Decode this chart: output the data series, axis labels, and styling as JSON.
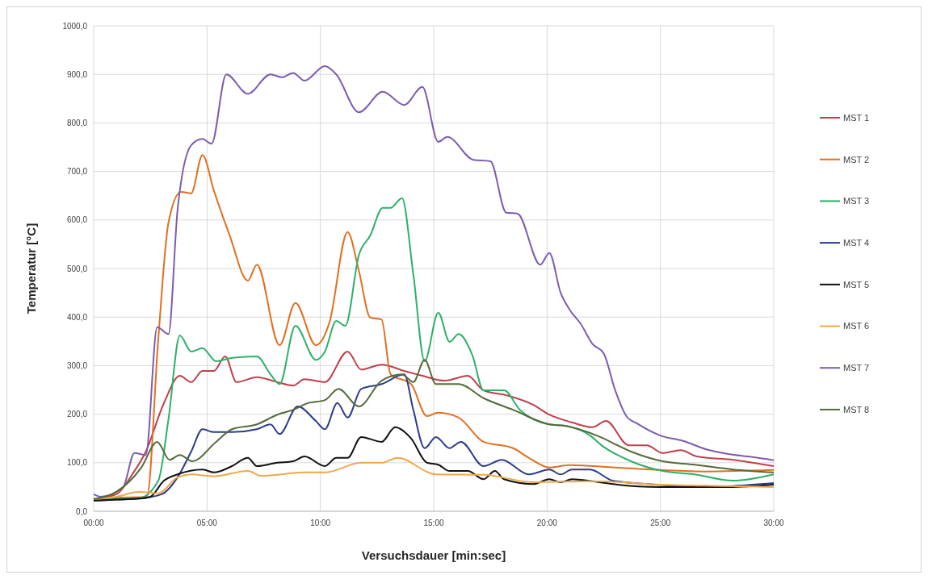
{
  "chart_data": {
    "type": "line",
    "xlabel": "Versuchsdauer [min:sec]",
    "ylabel": "Temperatur [°C]",
    "xlim": [
      0,
      30
    ],
    "xticks": [
      {
        "value": 0,
        "label": "00:00"
      },
      {
        "value": 5,
        "label": "05:00"
      },
      {
        "value": 10,
        "label": "10:00"
      },
      {
        "value": 15,
        "label": "15:00"
      },
      {
        "value": 20,
        "label": "20:00"
      },
      {
        "value": 25,
        "label": "25:00"
      },
      {
        "value": 30,
        "label": "30:00"
      }
    ],
    "ylim": [
      0,
      1000
    ],
    "yticks": [
      {
        "value": 0,
        "label": "0,0"
      },
      {
        "value": 100,
        "label": "100,0"
      },
      {
        "value": 200,
        "label": "200,0"
      },
      {
        "value": 300,
        "label": "300,0"
      },
      {
        "value": 400,
        "label": "400,0"
      },
      {
        "value": 500,
        "label": "500,0"
      },
      {
        "value": 600,
        "label": "600,0"
      },
      {
        "value": 700,
        "label": "700,0"
      },
      {
        "value": 800,
        "label": "800,0"
      },
      {
        "value": 900,
        "label": "900,0"
      },
      {
        "value": 1000,
        "label": "1000,0"
      }
    ],
    "grid": true,
    "legend": "right",
    "marker": "none",
    "line_style": "solid",
    "series": [
      {
        "name": "MST 1",
        "color": "#c0404a",
        "x": [
          0,
          1,
          1.7,
          2.3,
          3.1,
          3.8,
          4.3,
          4.8,
          5.3,
          5.8,
          6.3,
          7.2,
          8.1,
          8.8,
          9.3,
          10.2,
          11.2,
          11.8,
          12.7,
          13.7,
          14.5,
          15.5,
          16.5,
          17.2,
          18.2,
          19.4,
          20.1,
          21.1,
          22,
          22.6,
          23.6,
          24.4,
          25.1,
          25.9,
          26.6,
          28.2,
          30
        ],
        "values": [
          25,
          35,
          76,
          123,
          223,
          279,
          266,
          289,
          289,
          319,
          266,
          276,
          266,
          259,
          272,
          266,
          329,
          292,
          302,
          289,
          279,
          269,
          279,
          249,
          239,
          219,
          199,
          183,
          173,
          186,
          136,
          136,
          120,
          126,
          113,
          106,
          93
        ]
      },
      {
        "name": "MST 2",
        "color": "#e07020",
        "x": [
          0,
          1,
          2.35,
          2.85,
          3.3,
          3.85,
          4.3,
          4.8,
          5.3,
          6,
          6.8,
          7.2,
          8.2,
          8.9,
          9.8,
          10.4,
          11.2,
          11.7,
          12.2,
          12.7,
          13.1,
          14,
          14.7,
          15.2,
          16.1,
          17.2,
          18.5,
          19.2,
          20.1,
          21,
          23,
          25,
          27,
          30
        ],
        "values": [
          25,
          28,
          30,
          355,
          595,
          658,
          655,
          734,
          661,
          568,
          475,
          508,
          342,
          429,
          342,
          389,
          575,
          495,
          399,
          395,
          282,
          262,
          196,
          203,
          193,
          143,
          130,
          110,
          90,
          95,
          90,
          85,
          82,
          85
        ]
      },
      {
        "name": "MST 3",
        "color": "#2eb06a",
        "x": [
          0,
          1,
          2,
          2.85,
          3.3,
          3.8,
          4.3,
          4.8,
          5.4,
          6.1,
          7.2,
          7.8,
          8.2,
          8.9,
          9.8,
          10.2,
          10.7,
          11.1,
          11.7,
          12.2,
          12.75,
          13.1,
          13.6,
          14.1,
          14.6,
          15.2,
          15.7,
          16.1,
          16.7,
          17.2,
          18.1,
          18.8,
          20.1,
          20.8,
          21.9,
          22.4,
          23.7,
          25.1,
          26.5,
          28.2,
          30
        ],
        "values": [
          25,
          26,
          27,
          63,
          190,
          362,
          329,
          336,
          309,
          316,
          319,
          282,
          262,
          382,
          312,
          329,
          392,
          382,
          528,
          568,
          625,
          625,
          645,
          488,
          309,
          409,
          349,
          365,
          322,
          249,
          249,
          209,
          179,
          176,
          156,
          136,
          103,
          83,
          76,
          63,
          76
        ]
      },
      {
        "name": "MST 4",
        "color": "#2c3c8c",
        "x": [
          0,
          1,
          2,
          3,
          3.7,
          4.3,
          4.8,
          5.3,
          6.1,
          7.2,
          7.8,
          8.2,
          9,
          9.8,
          10.2,
          10.75,
          11.2,
          11.8,
          12.7,
          13.7,
          14.1,
          14.6,
          15.1,
          15.7,
          16.2,
          17.2,
          18,
          19.2,
          20.1,
          20.6,
          21.1,
          21.9,
          22.9,
          24.5,
          26.5,
          28.2,
          30
        ],
        "values": [
          22,
          24,
          26,
          35,
          70,
          123,
          169,
          163,
          163,
          169,
          179,
          159,
          216,
          186,
          169,
          223,
          193,
          252,
          262,
          282,
          209,
          130,
          153,
          130,
          143,
          93,
          106,
          76,
          86,
          76,
          86,
          86,
          63,
          56,
          50,
          52,
          58
        ]
      },
      {
        "name": "MST 5",
        "color": "#111111",
        "x": [
          0,
          1,
          2,
          2.5,
          3.1,
          3.7,
          4.8,
          5.3,
          6.1,
          6.8,
          7.2,
          8.1,
          8.8,
          9.3,
          10.2,
          10.7,
          11.2,
          11.8,
          12.7,
          13.3,
          14,
          14.7,
          15.2,
          15.7,
          16.5,
          17.2,
          17.7,
          18.1,
          19.4,
          20.1,
          20.6,
          21.1,
          22,
          22.9,
          25,
          28,
          30
        ],
        "values": [
          22,
          24,
          26,
          30,
          63,
          76,
          86,
          80,
          93,
          110,
          93,
          100,
          103,
          113,
          93,
          110,
          110,
          153,
          143,
          173,
          150,
          100,
          96,
          83,
          83,
          66,
          83,
          66,
          56,
          66,
          60,
          66,
          62,
          56,
          50,
          50,
          55
        ]
      },
      {
        "name": "MST 6",
        "color": "#f0a848",
        "x": [
          0,
          1,
          2,
          2.85,
          3.7,
          4.3,
          5.3,
          6.8,
          7.4,
          9.3,
          10.2,
          11.8,
          12.7,
          13.4,
          15.1,
          17.2,
          19.4,
          22,
          25,
          28,
          30
        ],
        "values": [
          25,
          30,
          40,
          37,
          70,
          76,
          72,
          83,
          73,
          80,
          80,
          100,
          100,
          110,
          76,
          75,
          60,
          62,
          55,
          52,
          50
        ]
      },
      {
        "name": "MST 7",
        "color": "#7c5cb0",
        "x": [
          0,
          0.3,
          1.3,
          1.8,
          2.3,
          2.8,
          3.3,
          3.7,
          4.3,
          4.8,
          5.2,
          5.85,
          6.8,
          7.8,
          8.3,
          8.8,
          9.3,
          10.2,
          10.7,
          11.7,
          12.75,
          13.7,
          14.5,
          15.2,
          15.6,
          16.75,
          17.5,
          18.2,
          18.7,
          19.7,
          20.1,
          20.6,
          21,
          21.5,
          22,
          22.5,
          23,
          23.5,
          24,
          25,
          26,
          27,
          28,
          29,
          30
        ],
        "values": [
          35,
          30,
          50,
          120,
          116,
          379,
          365,
          621,
          754,
          767,
          757,
          900,
          860,
          900,
          894,
          903,
          887,
          917,
          900,
          822,
          864,
          837,
          874,
          761,
          771,
          724,
          721,
          615,
          613,
          508,
          532,
          450,
          415,
          385,
          345,
          325,
          250,
          196,
          180,
          156,
          145,
          128,
          118,
          112,
          105
        ]
      },
      {
        "name": "MST 8",
        "color": "#556b3a",
        "x": [
          0,
          1,
          2.1,
          2.8,
          3.35,
          3.8,
          4.35,
          5.4,
          6.1,
          7.2,
          8.1,
          8.8,
          9.4,
          10.2,
          10.8,
          11.7,
          12.7,
          13.6,
          14.1,
          14.6,
          15.1,
          16.1,
          17.2,
          18.5,
          20.1,
          20.8,
          22.2,
          23.7,
          25.1,
          26.5,
          28.2,
          30
        ],
        "values": [
          25,
          40,
          90,
          143,
          106,
          116,
          103,
          143,
          169,
          179,
          199,
          209,
          222,
          229,
          252,
          216,
          269,
          282,
          266,
          312,
          262,
          262,
          233,
          209,
          179,
          176,
          156,
          123,
          103,
          96,
          86,
          80
        ]
      }
    ]
  }
}
